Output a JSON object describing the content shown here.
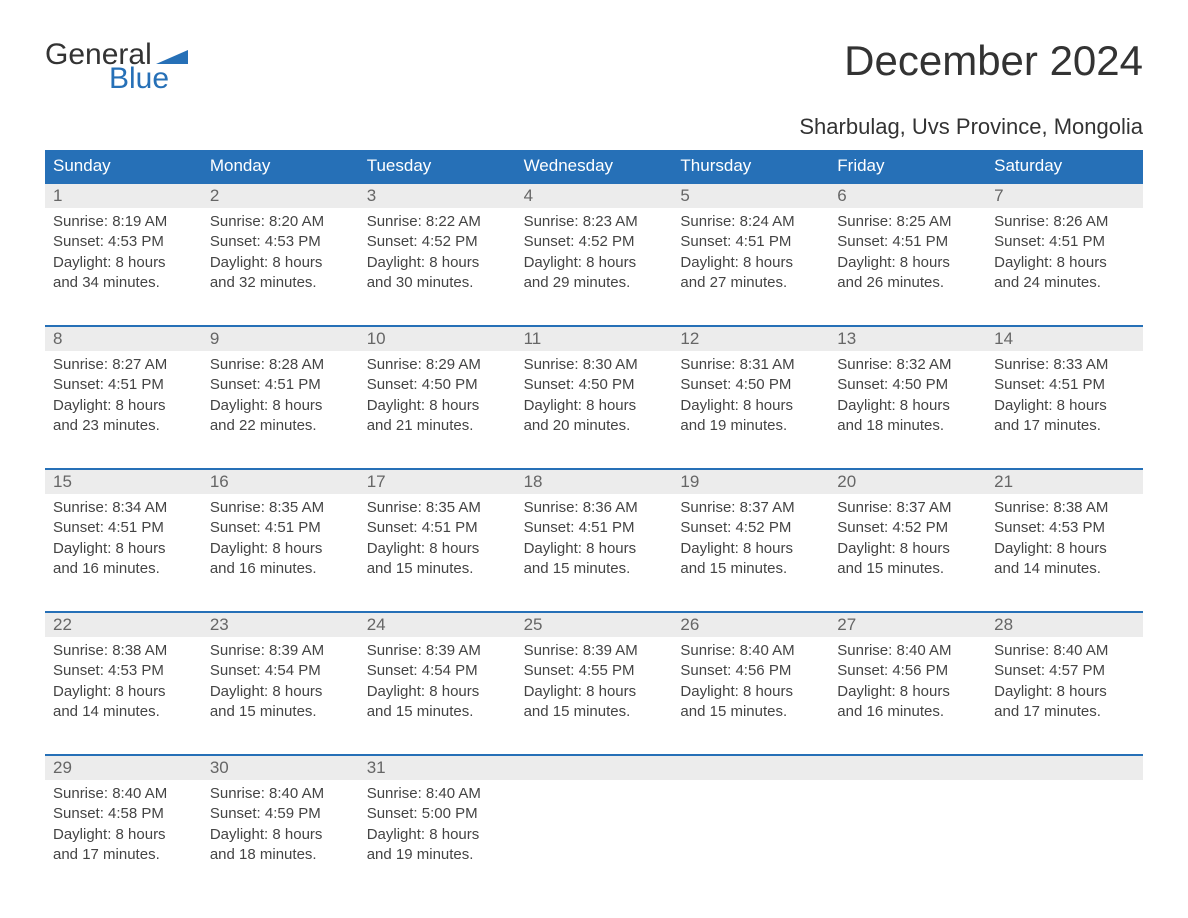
{
  "logo": {
    "text1": "General",
    "text2": "Blue",
    "flag_color": "#2670b7"
  },
  "title": "December 2024",
  "location": "Sharbulag, Uvs Province, Mongolia",
  "colors": {
    "header_bg": "#2670b7",
    "header_text": "#ffffff",
    "daynum_bg": "#ececec",
    "week_border": "#2670b7",
    "body_text": "#444444",
    "page_bg": "#ffffff"
  },
  "typography": {
    "title_fontsize": 42,
    "location_fontsize": 22,
    "weekday_fontsize": 17,
    "daynum_fontsize": 17,
    "cell_fontsize": 15
  },
  "layout": {
    "columns": 7,
    "rows": 5
  },
  "weekdays": [
    "Sunday",
    "Monday",
    "Tuesday",
    "Wednesday",
    "Thursday",
    "Friday",
    "Saturday"
  ],
  "days": [
    {
      "num": "1",
      "sunrise": "8:19 AM",
      "sunset": "4:53 PM",
      "daylight_h": "8",
      "daylight_m": "34"
    },
    {
      "num": "2",
      "sunrise": "8:20 AM",
      "sunset": "4:53 PM",
      "daylight_h": "8",
      "daylight_m": "32"
    },
    {
      "num": "3",
      "sunrise": "8:22 AM",
      "sunset": "4:52 PM",
      "daylight_h": "8",
      "daylight_m": "30"
    },
    {
      "num": "4",
      "sunrise": "8:23 AM",
      "sunset": "4:52 PM",
      "daylight_h": "8",
      "daylight_m": "29"
    },
    {
      "num": "5",
      "sunrise": "8:24 AM",
      "sunset": "4:51 PM",
      "daylight_h": "8",
      "daylight_m": "27"
    },
    {
      "num": "6",
      "sunrise": "8:25 AM",
      "sunset": "4:51 PM",
      "daylight_h": "8",
      "daylight_m": "26"
    },
    {
      "num": "7",
      "sunrise": "8:26 AM",
      "sunset": "4:51 PM",
      "daylight_h": "8",
      "daylight_m": "24"
    },
    {
      "num": "8",
      "sunrise": "8:27 AM",
      "sunset": "4:51 PM",
      "daylight_h": "8",
      "daylight_m": "23"
    },
    {
      "num": "9",
      "sunrise": "8:28 AM",
      "sunset": "4:51 PM",
      "daylight_h": "8",
      "daylight_m": "22"
    },
    {
      "num": "10",
      "sunrise": "8:29 AM",
      "sunset": "4:50 PM",
      "daylight_h": "8",
      "daylight_m": "21"
    },
    {
      "num": "11",
      "sunrise": "8:30 AM",
      "sunset": "4:50 PM",
      "daylight_h": "8",
      "daylight_m": "20"
    },
    {
      "num": "12",
      "sunrise": "8:31 AM",
      "sunset": "4:50 PM",
      "daylight_h": "8",
      "daylight_m": "19"
    },
    {
      "num": "13",
      "sunrise": "8:32 AM",
      "sunset": "4:50 PM",
      "daylight_h": "8",
      "daylight_m": "18"
    },
    {
      "num": "14",
      "sunrise": "8:33 AM",
      "sunset": "4:51 PM",
      "daylight_h": "8",
      "daylight_m": "17"
    },
    {
      "num": "15",
      "sunrise": "8:34 AM",
      "sunset": "4:51 PM",
      "daylight_h": "8",
      "daylight_m": "16"
    },
    {
      "num": "16",
      "sunrise": "8:35 AM",
      "sunset": "4:51 PM",
      "daylight_h": "8",
      "daylight_m": "16"
    },
    {
      "num": "17",
      "sunrise": "8:35 AM",
      "sunset": "4:51 PM",
      "daylight_h": "8",
      "daylight_m": "15"
    },
    {
      "num": "18",
      "sunrise": "8:36 AM",
      "sunset": "4:51 PM",
      "daylight_h": "8",
      "daylight_m": "15"
    },
    {
      "num": "19",
      "sunrise": "8:37 AM",
      "sunset": "4:52 PM",
      "daylight_h": "8",
      "daylight_m": "15"
    },
    {
      "num": "20",
      "sunrise": "8:37 AM",
      "sunset": "4:52 PM",
      "daylight_h": "8",
      "daylight_m": "15"
    },
    {
      "num": "21",
      "sunrise": "8:38 AM",
      "sunset": "4:53 PM",
      "daylight_h": "8",
      "daylight_m": "14"
    },
    {
      "num": "22",
      "sunrise": "8:38 AM",
      "sunset": "4:53 PM",
      "daylight_h": "8",
      "daylight_m": "14"
    },
    {
      "num": "23",
      "sunrise": "8:39 AM",
      "sunset": "4:54 PM",
      "daylight_h": "8",
      "daylight_m": "15"
    },
    {
      "num": "24",
      "sunrise": "8:39 AM",
      "sunset": "4:54 PM",
      "daylight_h": "8",
      "daylight_m": "15"
    },
    {
      "num": "25",
      "sunrise": "8:39 AM",
      "sunset": "4:55 PM",
      "daylight_h": "8",
      "daylight_m": "15"
    },
    {
      "num": "26",
      "sunrise": "8:40 AM",
      "sunset": "4:56 PM",
      "daylight_h": "8",
      "daylight_m": "15"
    },
    {
      "num": "27",
      "sunrise": "8:40 AM",
      "sunset": "4:56 PM",
      "daylight_h": "8",
      "daylight_m": "16"
    },
    {
      "num": "28",
      "sunrise": "8:40 AM",
      "sunset": "4:57 PM",
      "daylight_h": "8",
      "daylight_m": "17"
    },
    {
      "num": "29",
      "sunrise": "8:40 AM",
      "sunset": "4:58 PM",
      "daylight_h": "8",
      "daylight_m": "17"
    },
    {
      "num": "30",
      "sunrise": "8:40 AM",
      "sunset": "4:59 PM",
      "daylight_h": "8",
      "daylight_m": "18"
    },
    {
      "num": "31",
      "sunrise": "8:40 AM",
      "sunset": "5:00 PM",
      "daylight_h": "8",
      "daylight_m": "19"
    }
  ],
  "labels": {
    "sunrise_prefix": "Sunrise: ",
    "sunset_prefix": "Sunset: ",
    "daylight_prefix": "Daylight: ",
    "hours_word": " hours",
    "and_word": "and ",
    "minutes_word": " minutes."
  }
}
